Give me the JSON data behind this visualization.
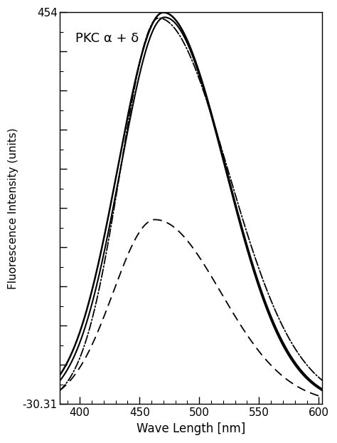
{
  "title_annotation": "PKC α + δ",
  "xlabel": "Wave Length [nm]",
  "ylabel": "Fluorescence Intensity (units)",
  "xlim": [
    383,
    603
  ],
  "ylim": [
    -30.31,
    454
  ],
  "ytick_top": 454,
  "ytick_bottom": -30.31,
  "xticks": [
    400,
    450,
    500,
    550,
    600
  ],
  "background_color": "#ffffff",
  "line_color": "#000000",
  "figsize": [
    4.74,
    6.22
  ],
  "dpi": 100,
  "curves": [
    {
      "type": "solid",
      "peak": 470,
      "amplitude": 484,
      "base": -30.31,
      "sigma_l": 38,
      "sigma_r": 52,
      "lw": 1.8
    },
    {
      "type": "solid",
      "peak": 471,
      "amplitude": 478,
      "base": -30.31,
      "sigma_l": 37,
      "sigma_r": 51,
      "lw": 1.5
    },
    {
      "type": "dashdot",
      "peak": 466,
      "amplitude": 477,
      "base": -30.31,
      "sigma_l": 32,
      "sigma_r": 58,
      "lw": 1.3
    },
    {
      "type": "dashed",
      "peak": 463,
      "amplitude": 228,
      "base": -30.31,
      "sigma_l": 35,
      "sigma_r": 55,
      "lw": 1.3
    }
  ]
}
